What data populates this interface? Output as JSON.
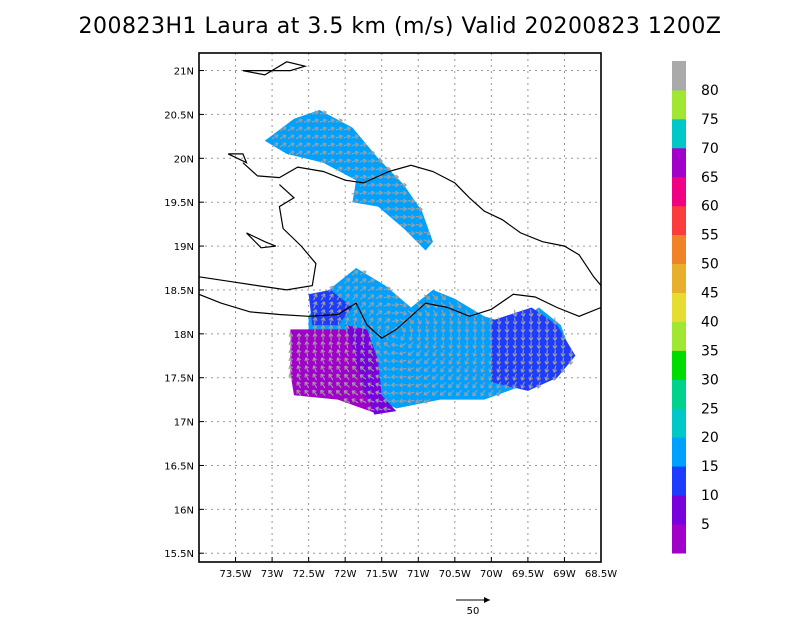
{
  "title": "200823H1 Laura at 3.5 km (m/s) Valid 20200823 1200Z",
  "chart_data": {
    "type": "heatmap",
    "title": "200823H1 Laura at 3.5 km (m/s) Valid 20200823 1200Z",
    "variable": "wind speed",
    "units": "m/s",
    "xlim": [
      -74.0,
      -68.5
    ],
    "ylim": [
      15.4,
      21.2
    ],
    "x_ticks": [
      {
        "value": -73.5,
        "label": "73.5W"
      },
      {
        "value": -73.0,
        "label": "73W"
      },
      {
        "value": -72.5,
        "label": "72.5W"
      },
      {
        "value": -72.0,
        "label": "72W"
      },
      {
        "value": -71.5,
        "label": "71.5W"
      },
      {
        "value": -71.0,
        "label": "71W"
      },
      {
        "value": -70.5,
        "label": "70.5W"
      },
      {
        "value": -70.0,
        "label": "70W"
      },
      {
        "value": -69.5,
        "label": "69.5W"
      },
      {
        "value": -69.0,
        "label": "69W"
      },
      {
        "value": -68.5,
        "label": "68.5W"
      }
    ],
    "y_ticks": [
      {
        "value": 21.0,
        "label": "21N"
      },
      {
        "value": 20.5,
        "label": "20.5N"
      },
      {
        "value": 20.0,
        "label": "20N"
      },
      {
        "value": 19.5,
        "label": "19.5N"
      },
      {
        "value": 19.0,
        "label": "19N"
      },
      {
        "value": 18.5,
        "label": "18.5N"
      },
      {
        "value": 18.0,
        "label": "18N"
      },
      {
        "value": 17.5,
        "label": "17.5N"
      },
      {
        "value": 17.0,
        "label": "17N"
      },
      {
        "value": 16.5,
        "label": "16.5N"
      },
      {
        "value": 16.0,
        "label": "16N"
      },
      {
        "value": 15.5,
        "label": "15.5N"
      }
    ],
    "grid": true,
    "colorbar": {
      "placement": "right",
      "levels": [
        {
          "color": "#a000c8",
          "label": "5"
        },
        {
          "color": "#7800dc",
          "label": "10"
        },
        {
          "color": "#1e3cff",
          "label": "15"
        },
        {
          "color": "#00a0ff",
          "label": "20"
        },
        {
          "color": "#00c8c8",
          "label": "25"
        },
        {
          "color": "#00d28c",
          "label": "30"
        },
        {
          "color": "#00dc00",
          "label": "35"
        },
        {
          "color": "#a0e632",
          "label": "40"
        },
        {
          "color": "#e6dc32",
          "label": "45"
        },
        {
          "color": "#e6af2d",
          "label": "50"
        },
        {
          "color": "#f08228",
          "label": "55"
        },
        {
          "color": "#fa3c3c",
          "label": "60"
        },
        {
          "color": "#f00082",
          "label": "65"
        },
        {
          "color": "#a000c8",
          "label": "70"
        },
        {
          "color": "#00c8c8",
          "label": "75"
        },
        {
          "color": "#a0e632",
          "label": "80"
        },
        {
          "color": "#aaaaaa",
          "label": ""
        }
      ]
    },
    "reference_vector": {
      "label": "50",
      "magnitude": 50
    },
    "vector_color": "#a0a0a0",
    "regions": [
      {
        "name": "northern swath",
        "level": "20",
        "points": [
          [
            -73.1,
            20.2
          ],
          [
            -72.7,
            20.45
          ],
          [
            -72.35,
            20.55
          ],
          [
            -71.9,
            20.35
          ],
          [
            -71.55,
            20.0
          ],
          [
            -71.2,
            19.7
          ],
          [
            -70.95,
            19.4
          ],
          [
            -70.8,
            19.05
          ],
          [
            -70.9,
            18.95
          ],
          [
            -71.2,
            19.2
          ],
          [
            -71.55,
            19.45
          ],
          [
            -71.9,
            19.5
          ],
          [
            -71.85,
            19.75
          ],
          [
            -72.3,
            19.95
          ],
          [
            -72.8,
            20.05
          ]
        ]
      },
      {
        "name": "eyewall south",
        "level": "20",
        "points": [
          [
            -72.5,
            18.2
          ],
          [
            -72.3,
            18.45
          ],
          [
            -71.85,
            18.75
          ],
          [
            -71.45,
            18.55
          ],
          [
            -71.1,
            18.3
          ],
          [
            -70.8,
            18.5
          ],
          [
            -70.5,
            18.4
          ],
          [
            -70.1,
            18.2
          ],
          [
            -69.7,
            18.1
          ],
          [
            -69.35,
            18.3
          ],
          [
            -69.05,
            18.1
          ],
          [
            -68.9,
            17.75
          ],
          [
            -69.2,
            17.6
          ],
          [
            -69.6,
            17.4
          ],
          [
            -70.1,
            17.25
          ],
          [
            -70.7,
            17.25
          ],
          [
            -71.3,
            17.15
          ],
          [
            -71.8,
            17.35
          ],
          [
            -72.2,
            17.55
          ],
          [
            -72.5,
            17.85
          ]
        ]
      },
      {
        "name": "eastern band",
        "level": "15",
        "points": [
          [
            -70.0,
            18.15
          ],
          [
            -69.45,
            18.3
          ],
          [
            -69.1,
            18.1
          ],
          [
            -68.85,
            17.75
          ],
          [
            -69.1,
            17.5
          ],
          [
            -69.5,
            17.35
          ],
          [
            -70.0,
            17.45
          ]
        ]
      },
      {
        "name": "western outer",
        "level": "5",
        "points": [
          [
            -72.75,
            18.05
          ],
          [
            -72.0,
            18.05
          ],
          [
            -71.8,
            17.75
          ],
          [
            -71.7,
            17.35
          ],
          [
            -71.6,
            17.1
          ],
          [
            -72.1,
            17.25
          ],
          [
            -72.7,
            17.3
          ],
          [
            -72.75,
            17.55
          ]
        ]
      },
      {
        "name": "western transition",
        "level": "10",
        "points": [
          [
            -72.0,
            18.1
          ],
          [
            -71.7,
            18.05
          ],
          [
            -71.55,
            17.7
          ],
          [
            -71.5,
            17.3
          ],
          [
            -71.3,
            17.12
          ],
          [
            -71.6,
            17.08
          ],
          [
            -71.75,
            17.35
          ],
          [
            -71.85,
            17.7
          ]
        ]
      },
      {
        "name": "northwest inner",
        "level": "15",
        "points": [
          [
            -72.5,
            18.45
          ],
          [
            -72.2,
            18.5
          ],
          [
            -71.9,
            18.3
          ],
          [
            -72.1,
            18.1
          ],
          [
            -72.45,
            18.1
          ]
        ]
      }
    ],
    "coastlines": [
      [
        [
          -73.4,
          19.95
        ],
        [
          -73.2,
          19.8
        ],
        [
          -72.9,
          19.78
        ],
        [
          -72.65,
          19.9
        ],
        [
          -72.3,
          19.85
        ],
        [
          -72.0,
          19.75
        ],
        [
          -71.75,
          19.72
        ],
        [
          -71.4,
          19.85
        ],
        [
          -71.1,
          19.92
        ],
        [
          -70.8,
          19.85
        ],
        [
          -70.5,
          19.72
        ],
        [
          -70.3,
          19.55
        ],
        [
          -70.1,
          19.4
        ],
        [
          -69.85,
          19.3
        ],
        [
          -69.6,
          19.15
        ],
        [
          -69.3,
          19.05
        ],
        [
          -69.0,
          19.0
        ],
        [
          -68.8,
          18.9
        ],
        [
          -68.6,
          18.65
        ],
        [
          -68.4,
          18.45
        ],
        [
          -68.5,
          18.3
        ],
        [
          -68.8,
          18.2
        ],
        [
          -69.1,
          18.3
        ],
        [
          -69.4,
          18.42
        ],
        [
          -69.7,
          18.45
        ],
        [
          -70.0,
          18.28
        ],
        [
          -70.3,
          18.2
        ],
        [
          -70.6,
          18.3
        ],
        [
          -70.9,
          18.35
        ],
        [
          -71.1,
          18.2
        ],
        [
          -71.3,
          18.05
        ],
        [
          -71.5,
          17.95
        ],
        [
          -71.7,
          18.1
        ],
        [
          -71.85,
          18.35
        ],
        [
          -72.1,
          18.22
        ],
        [
          -72.5,
          18.2
        ],
        [
          -72.9,
          18.22
        ],
        [
          -73.3,
          18.25
        ],
        [
          -73.7,
          18.35
        ],
        [
          -74.0,
          18.45
        ]
      ],
      [
        [
          -74.0,
          18.65
        ],
        [
          -73.6,
          18.6
        ],
        [
          -73.2,
          18.55
        ],
        [
          -72.8,
          18.5
        ],
        [
          -72.45,
          18.55
        ],
        [
          -72.4,
          18.8
        ],
        [
          -72.6,
          19.0
        ],
        [
          -72.85,
          19.2
        ],
        [
          -72.9,
          19.45
        ],
        [
          -72.7,
          19.55
        ],
        [
          -72.9,
          19.7
        ]
      ],
      [
        [
          -73.35,
          19.15
        ],
        [
          -73.1,
          19.05
        ],
        [
          -72.95,
          19.0
        ],
        [
          -73.15,
          18.98
        ],
        [
          -73.35,
          19.15
        ]
      ],
      [
        [
          -73.4,
          21.0
        ],
        [
          -73.1,
          20.95
        ],
        [
          -72.8,
          21.1
        ],
        [
          -72.55,
          21.05
        ],
        [
          -72.75,
          21.0
        ],
        [
          -73.0,
          21.0
        ],
        [
          -73.4,
          21.0
        ]
      ],
      [
        [
          -73.6,
          20.05
        ],
        [
          -73.4,
          20.05
        ],
        [
          -73.35,
          19.95
        ],
        [
          -73.6,
          20.05
        ]
      ]
    ]
  }
}
